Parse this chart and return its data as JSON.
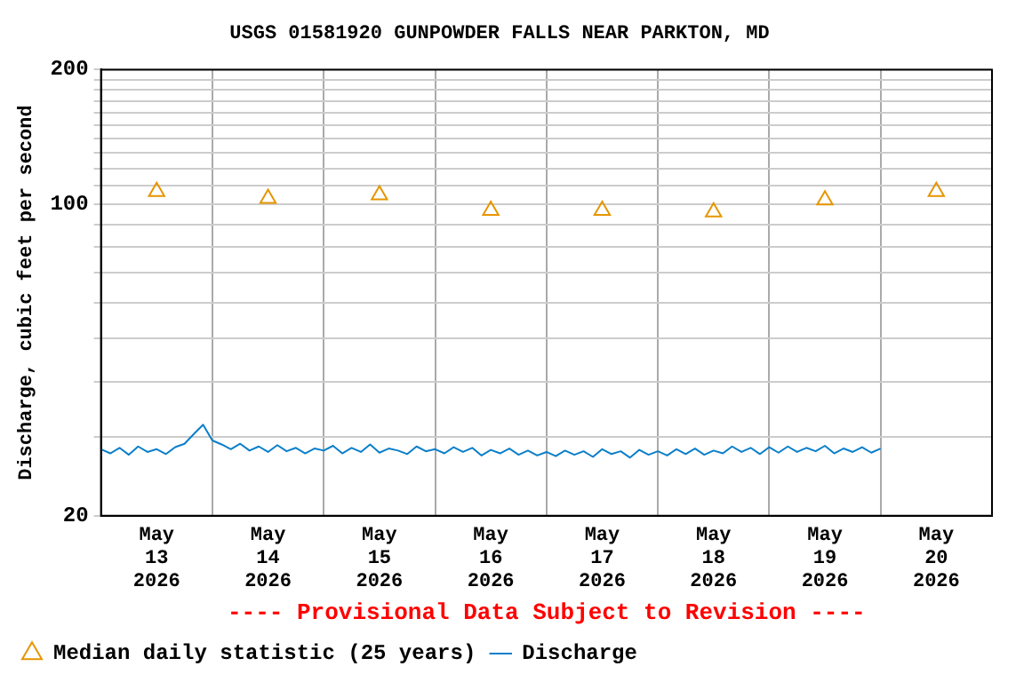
{
  "chart_data": {
    "type": "line",
    "title": "USGS 01581920 GUNPOWDER FALLS NEAR PARKTON, MD",
    "ylabel": "Discharge, cubic feet per second",
    "annotations": [
      "---- Provisional Data Subject to Revision ----"
    ],
    "log": "y",
    "grid": true,
    "legend": "bottom",
    "xlim": [
      "2026-05-13T00:00",
      "2026-05-21T00:00"
    ],
    "xticks": [
      {
        "value": "2026-05-13T00:00",
        "label": null
      },
      {
        "value": "2026-05-13T12:00",
        "label": "May 13 2026"
      },
      {
        "value": "2026-05-14T00:00",
        "label": null
      },
      {
        "value": "2026-05-14T12:00",
        "label": "May 14 2026"
      },
      {
        "value": "2026-05-15T00:00",
        "label": null
      },
      {
        "value": "2026-05-15T12:00",
        "label": "May 15 2026"
      },
      {
        "value": "2026-05-16T00:00",
        "label": null
      },
      {
        "value": "2026-05-16T12:00",
        "label": "May 16 2026"
      },
      {
        "value": "2026-05-17T00:00",
        "label": null
      },
      {
        "value": "2026-05-17T12:00",
        "label": "May 17 2026"
      },
      {
        "value": "2026-05-18T00:00",
        "label": null
      },
      {
        "value": "2026-05-18T12:00",
        "label": "May 18 2026"
      },
      {
        "value": "2026-05-19T00:00",
        "label": null
      },
      {
        "value": "2026-05-19T12:00",
        "label": "May 19 2026"
      },
      {
        "value": "2026-05-20T00:00",
        "label": null
      },
      {
        "value": "2026-05-20T12:00",
        "label": "May 20 2026"
      },
      {
        "value": "2026-05-21T00:00",
        "label": null
      }
    ],
    "ylim": [
      20,
      200
    ],
    "yticks": [
      20,
      {
        "value": 30,
        "label": null
      },
      {
        "value": 40,
        "label": null
      },
      {
        "value": 50,
        "label": null
      },
      {
        "value": 60,
        "label": null
      },
      {
        "value": 70,
        "label": null
      },
      {
        "value": 80,
        "label": null
      },
      {
        "value": 90,
        "label": null
      },
      100,
      {
        "value": 110,
        "label": null
      },
      {
        "value": 120,
        "label": null
      },
      {
        "value": 130,
        "label": null
      },
      {
        "value": 140,
        "label": null
      },
      {
        "value": 150,
        "label": null
      },
      {
        "value": 160,
        "label": null
      },
      {
        "value": 170,
        "label": null
      },
      {
        "value": 180,
        "label": null
      },
      {
        "value": 190,
        "label": null
      },
      200
    ],
    "series": [
      {
        "name": "Median daily statistic (25 years)",
        "type": "scatter",
        "marker": "triangle",
        "color": "#e69500",
        "x": [
          "2026-05-13T12:00",
          "2026-05-14T12:00",
          "2026-05-15T12:00",
          "2026-05-16T12:00",
          "2026-05-17T12:00",
          "2026-05-18T12:00",
          "2026-05-19T12:00",
          "2026-05-20T12:00"
        ],
        "values": [
          106.6,
          102.9,
          104.7,
          96.7,
          96.7,
          95.9,
          102,
          106.6
        ]
      },
      {
        "name": "Discharge",
        "type": "line",
        "color": "#0a7fc9",
        "x": [
          "2026-05-13T00:00",
          "2026-05-13T02:00",
          "2026-05-13T04:00",
          "2026-05-13T06:00",
          "2026-05-13T08:00",
          "2026-05-13T10:00",
          "2026-05-13T12:00",
          "2026-05-13T14:00",
          "2026-05-13T16:00",
          "2026-05-13T18:00",
          "2026-05-13T20:00",
          "2026-05-13T22:00",
          "2026-05-14T00:00",
          "2026-05-14T02:00",
          "2026-05-14T04:00",
          "2026-05-14T06:00",
          "2026-05-14T08:00",
          "2026-05-14T10:00",
          "2026-05-14T12:00",
          "2026-05-14T14:00",
          "2026-05-14T16:00",
          "2026-05-14T18:00",
          "2026-05-14T20:00",
          "2026-05-14T22:00",
          "2026-05-15T00:00",
          "2026-05-15T02:00",
          "2026-05-15T04:00",
          "2026-05-15T06:00",
          "2026-05-15T08:00",
          "2026-05-15T10:00",
          "2026-05-15T12:00",
          "2026-05-15T14:00",
          "2026-05-15T16:00",
          "2026-05-15T18:00",
          "2026-05-15T20:00",
          "2026-05-15T22:00",
          "2026-05-16T00:00",
          "2026-05-16T02:00",
          "2026-05-16T04:00",
          "2026-05-16T06:00",
          "2026-05-16T08:00",
          "2026-05-16T10:00",
          "2026-05-16T12:00",
          "2026-05-16T14:00",
          "2026-05-16T16:00",
          "2026-05-16T18:00",
          "2026-05-16T20:00",
          "2026-05-16T22:00",
          "2026-05-17T00:00",
          "2026-05-17T02:00",
          "2026-05-17T04:00",
          "2026-05-17T06:00",
          "2026-05-17T08:00",
          "2026-05-17T10:00",
          "2026-05-17T12:00",
          "2026-05-17T14:00",
          "2026-05-17T16:00",
          "2026-05-17T18:00",
          "2026-05-17T20:00",
          "2026-05-17T22:00",
          "2026-05-18T00:00",
          "2026-05-18T02:00",
          "2026-05-18T04:00",
          "2026-05-18T06:00",
          "2026-05-18T08:00",
          "2026-05-18T10:00",
          "2026-05-18T12:00",
          "2026-05-18T14:00",
          "2026-05-18T16:00",
          "2026-05-18T18:00",
          "2026-05-18T20:00",
          "2026-05-18T22:00",
          "2026-05-19T00:00",
          "2026-05-19T02:00",
          "2026-05-19T04:00",
          "2026-05-19T06:00",
          "2026-05-19T08:00",
          "2026-05-19T10:00",
          "2026-05-19T12:00",
          "2026-05-19T14:00",
          "2026-05-19T16:00",
          "2026-05-19T18:00",
          "2026-05-19T20:00",
          "2026-05-19T22:00",
          "2026-05-20T00:00"
        ],
        "values": [
          28.2,
          27.6,
          28.4,
          27.4,
          28.6,
          27.8,
          28.2,
          27.5,
          28.5,
          29.0,
          30.5,
          32.0,
          29.5,
          28.9,
          28.2,
          29.0,
          28.0,
          28.6,
          27.8,
          28.8,
          27.9,
          28.4,
          27.6,
          28.3,
          28.0,
          28.7,
          27.6,
          28.4,
          27.8,
          28.9,
          27.7,
          28.3,
          28.0,
          27.5,
          28.6,
          27.9,
          28.2,
          27.6,
          28.5,
          27.8,
          28.4,
          27.3,
          28.1,
          27.6,
          28.3,
          27.4,
          28.0,
          27.3,
          27.8,
          27.2,
          28.0,
          27.4,
          27.9,
          27.1,
          28.2,
          27.5,
          27.9,
          27.0,
          28.1,
          27.4,
          27.9,
          27.3,
          28.2,
          27.5,
          28.3,
          27.4,
          28.0,
          27.6,
          28.6,
          27.8,
          28.4,
          27.5,
          28.5,
          27.7,
          28.6,
          27.8,
          28.4,
          27.9,
          28.7,
          27.6,
          28.3,
          27.8,
          28.5,
          27.7,
          28.3
        ]
      }
    ]
  }
}
